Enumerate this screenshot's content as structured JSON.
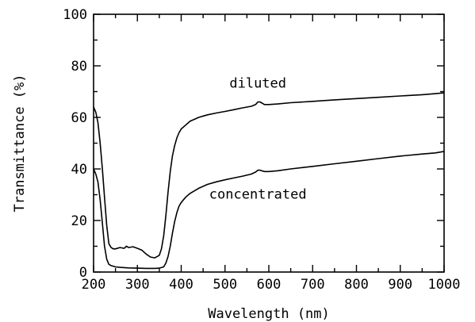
{
  "chart_data": {
    "type": "line",
    "xlabel": "Wavelength (nm)",
    "ylabel": "Transmittance (%)",
    "xlim": [
      200,
      1000
    ],
    "ylim": [
      0,
      100
    ],
    "xticks": [
      200,
      300,
      400,
      500,
      600,
      700,
      800,
      900,
      1000
    ],
    "yticks": [
      0,
      20,
      40,
      60,
      80,
      100
    ],
    "grid": false,
    "line_color": "#000000",
    "series": [
      {
        "name": "diluted",
        "x": [
          200,
          205,
          210,
          215,
          220,
          225,
          230,
          235,
          240,
          245,
          250,
          260,
          270,
          275,
          280,
          290,
          300,
          310,
          320,
          330,
          340,
          350,
          355,
          360,
          365,
          370,
          375,
          380,
          385,
          390,
          395,
          400,
          410,
          420,
          440,
          460,
          480,
          500,
          520,
          540,
          560,
          570,
          575,
          580,
          590,
          600,
          620,
          650,
          700,
          750,
          800,
          850,
          900,
          950,
          980,
          1000
        ],
        "y": [
          64,
          62,
          58,
          50,
          40,
          29,
          18,
          11,
          9.5,
          9,
          9,
          9.5,
          9.2,
          10,
          9.5,
          9.8,
          9.2,
          8.5,
          7,
          5.8,
          5.5,
          6.5,
          9,
          14,
          22,
          31,
          39,
          45,
          49,
          52,
          54,
          55.5,
          57,
          58.5,
          60,
          61,
          61.7,
          62.3,
          63,
          63.7,
          64.3,
          65,
          66,
          66,
          65,
          65,
          65.2,
          65.7,
          66.2,
          66.8,
          67.3,
          67.8,
          68.3,
          68.8,
          69.2,
          69.5
        ]
      },
      {
        "name": "concentrated",
        "x": [
          200,
          205,
          210,
          215,
          220,
          225,
          230,
          235,
          240,
          250,
          260,
          280,
          300,
          320,
          340,
          350,
          360,
          365,
          370,
          375,
          380,
          385,
          390,
          395,
          400,
          410,
          420,
          440,
          460,
          480,
          500,
          520,
          540,
          560,
          570,
          575,
          580,
          590,
          600,
          620,
          650,
          700,
          750,
          800,
          850,
          900,
          950,
          980,
          1000
        ],
        "y": [
          40,
          38,
          35,
          28,
          19,
          10,
          5,
          3,
          2.5,
          2,
          1.8,
          1.6,
          1.5,
          1.4,
          1.4,
          1.5,
          2,
          3.5,
          6,
          10,
          15,
          19.5,
          23,
          25.5,
          27,
          29,
          30.5,
          32.5,
          34,
          35,
          35.8,
          36.5,
          37.2,
          38,
          38.8,
          39.5,
          39.5,
          39,
          39,
          39.3,
          40,
          41,
          42,
          43,
          44,
          45,
          45.8,
          46.2,
          46.8
        ]
      }
    ],
    "annotations": [
      {
        "text": "diluted",
        "x": 575,
        "y": 71.5
      },
      {
        "text": "concentrated",
        "x": 575,
        "y": 28.5
      }
    ]
  }
}
